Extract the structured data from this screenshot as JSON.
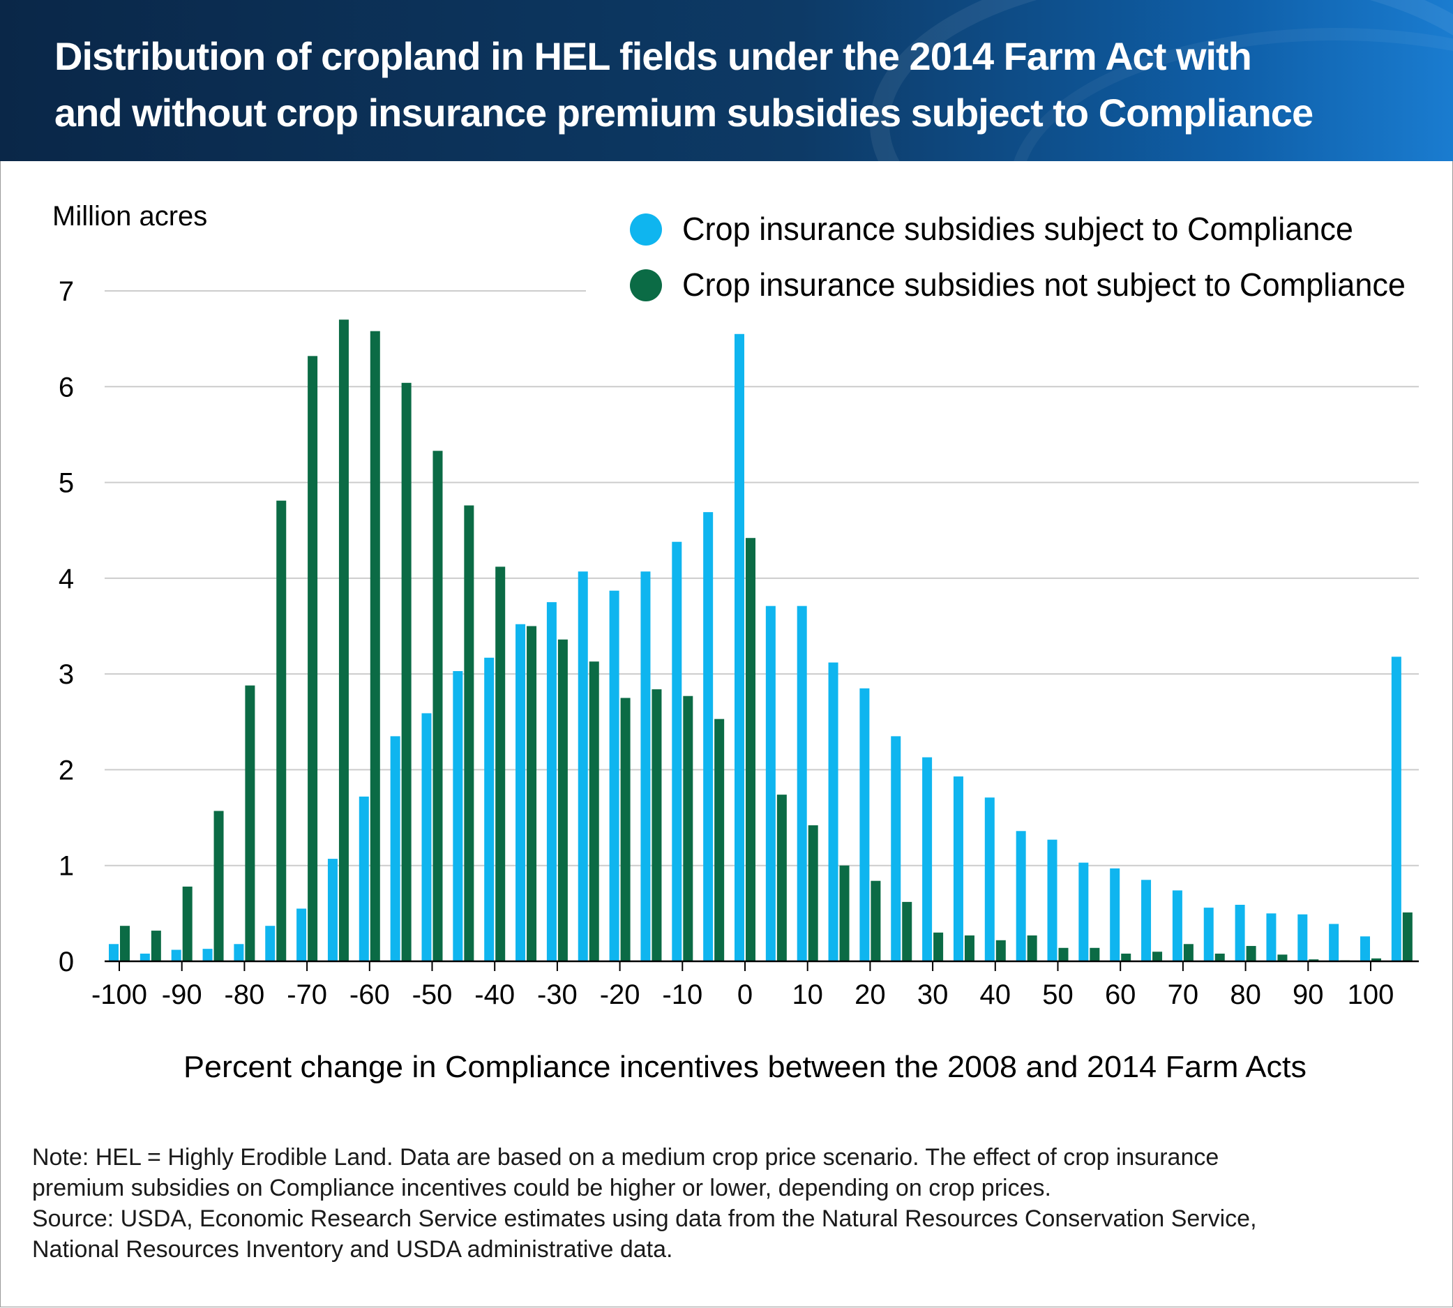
{
  "header": {
    "title_line1": "Distribution of cropland in HEL fields under the 2014 Farm Act with",
    "title_line2": "and without crop insurance premium subsidies subject to Compliance"
  },
  "colors": {
    "series_subject": "#0fb5ef",
    "series_not_subject": "#0b6b45",
    "gridline": "#cccccc",
    "axis": "#000000"
  },
  "chart_data": {
    "type": "bar",
    "title": "Distribution of cropland in HEL fields under the 2014 Farm Act with and without crop insurance premium subsidies subject to Compliance",
    "ylabel": "Million acres",
    "xlabel": "Percent change in Compliance incentives between the 2008 and 2014 Farm Acts",
    "ylim": [
      0,
      7
    ],
    "yticks": [
      "0",
      "1",
      "2",
      "3",
      "4",
      "5",
      "6",
      "7"
    ],
    "xtick_labels": [
      "-100",
      "-90",
      "-80",
      "-70",
      "-60",
      "-50",
      "-40",
      "-30",
      "-20",
      "-10",
      "0",
      "10",
      "20",
      "30",
      "40",
      "50",
      "60",
      "70",
      "80",
      "90",
      "100"
    ],
    "categories": [
      -100,
      -95,
      -90,
      -85,
      -80,
      -75,
      -70,
      -65,
      -60,
      -55,
      -50,
      -45,
      -40,
      -35,
      -30,
      -25,
      -20,
      -15,
      -10,
      -5,
      0,
      5,
      10,
      15,
      20,
      25,
      30,
      35,
      40,
      45,
      50,
      55,
      60,
      65,
      70,
      75,
      80,
      85,
      90,
      95,
      100,
      105
    ],
    "legend_position": "top-right",
    "series": [
      {
        "name": "Crop insurance subsidies subject to Compliance",
        "values": [
          0.18,
          0.08,
          0.12,
          0.13,
          0.18,
          0.37,
          0.55,
          1.07,
          1.72,
          2.35,
          2.59,
          3.03,
          3.17,
          3.52,
          3.75,
          4.07,
          3.87,
          4.07,
          4.38,
          4.69,
          6.55,
          3.71,
          3.71,
          3.12,
          2.85,
          2.35,
          2.13,
          1.93,
          1.71,
          1.36,
          1.27,
          1.03,
          0.97,
          0.85,
          0.74,
          0.56,
          0.59,
          0.5,
          0.49,
          0.39,
          0.26,
          3.18
        ]
      },
      {
        "name": "Crop insurance subsidies not subject to Compliance",
        "values": [
          0.37,
          0.32,
          0.78,
          1.57,
          2.88,
          4.81,
          6.32,
          6.7,
          6.58,
          6.04,
          5.33,
          4.76,
          4.12,
          3.5,
          3.36,
          3.13,
          2.75,
          2.84,
          2.77,
          2.53,
          4.42,
          1.74,
          1.42,
          1.0,
          0.84,
          0.62,
          0.3,
          0.27,
          0.22,
          0.27,
          0.14,
          0.14,
          0.08,
          0.1,
          0.18,
          0.08,
          0.16,
          0.07,
          0.02,
          0.01,
          0.03,
          0.51
        ]
      }
    ]
  },
  "note": {
    "line1": "Note: HEL = Highly Erodible Land. Data are based on a medium crop price scenario. The effect of crop insurance",
    "line2": "premium subsidies on Compliance incentives could be higher or lower, depending on crop prices.",
    "line3": "Source: USDA, Economic Research Service estimates using data from the Natural Resources Conservation Service,",
    "line4": "National Resources Inventory and USDA administrative data."
  }
}
